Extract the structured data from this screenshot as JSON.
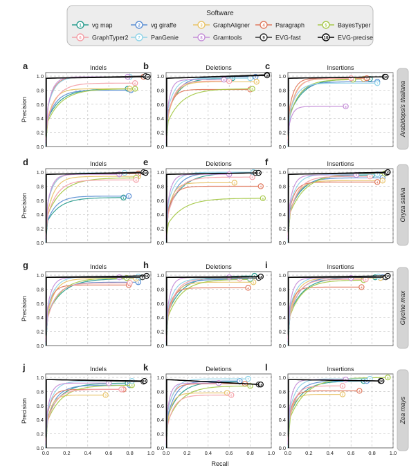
{
  "legend": {
    "title": "Software",
    "items": [
      {
        "num": "1",
        "name": "vg map",
        "color": "#2a9d8f"
      },
      {
        "num": "2",
        "name": "vg giraffe",
        "color": "#5b8fd4"
      },
      {
        "num": "3",
        "name": "GraphAligner",
        "color": "#e9c46a"
      },
      {
        "num": "4",
        "name": "Paragraph",
        "color": "#e07a5f"
      },
      {
        "num": "5",
        "name": "BayesTyper",
        "color": "#a7c94a"
      },
      {
        "num": "6",
        "name": "GraphTyper2",
        "color": "#f4a0a8"
      },
      {
        "num": "7",
        "name": "PanGenie",
        "color": "#8fd3e8"
      },
      {
        "num": "8",
        "name": "Gramtools",
        "color": "#c58fd8"
      },
      {
        "num": "9",
        "name": "EVG-fast",
        "color": "#333333"
      },
      {
        "num": "10",
        "name": "EVG-precise",
        "color": "#000000"
      }
    ]
  },
  "axes": {
    "xlabel": "Recall",
    "ylabel": "Precision",
    "xticks": [
      "0.0",
      "0.2",
      "0.4",
      "0.6",
      "0.8",
      "1.0"
    ],
    "yticks": [
      "0.0",
      "0.2",
      "0.4",
      "0.6",
      "0.8",
      "1.0"
    ],
    "xlim": [
      0,
      1
    ],
    "ylim": [
      0,
      1.05
    ]
  },
  "chart_data": {
    "type": "line",
    "columns": [
      "Indels",
      "Deletions",
      "Insertions"
    ],
    "rows": [
      "Arabidopsis thaliana",
      "Oryza sativa",
      "Glycine max",
      "Zea mays"
    ],
    "panel_letters": [
      "a",
      "b",
      "c",
      "d",
      "e",
      "f",
      "g",
      "h",
      "i",
      "j",
      "k",
      "l"
    ],
    "grid": true,
    "legend_placement": "top",
    "final_points": [
      [
        [
          [
            0.78,
            0.82
          ],
          [
            0.81,
            0.8
          ],
          [
            0.8,
            0.82
          ],
          [
            0.93,
            0.99
          ],
          [
            0.85,
            0.82
          ],
          [
            0.85,
            0.9
          ],
          [
            0.8,
            0.99
          ],
          [
            0.78,
            0.99
          ],
          [
            0.95,
            1.0
          ],
          [
            0.97,
            0.99
          ]
        ],
        [
          [
            0.63,
            0.97
          ],
          [
            0.85,
            0.99
          ],
          [
            0.86,
            0.92
          ],
          [
            0.8,
            0.81
          ],
          [
            0.82,
            0.82
          ],
          [
            0.6,
            0.93
          ],
          [
            0.8,
            0.97
          ],
          [
            0.55,
            0.95
          ],
          [
            0.96,
            1.02
          ],
          [
            0.96,
            1.01
          ]
        ],
        [
          [
            0.78,
            0.96
          ],
          [
            0.85,
            0.92
          ],
          [
            0.72,
            0.96
          ],
          [
            0.75,
            0.97
          ],
          [
            0.62,
            0.95
          ],
          [
            0.6,
            0.97
          ],
          [
            0.85,
            0.9
          ],
          [
            0.55,
            0.57
          ],
          [
            0.92,
            0.99
          ],
          [
            0.93,
            0.99
          ]
        ]
      ],
      [
        [
          [
            0.74,
            0.64
          ],
          [
            0.79,
            0.66
          ],
          [
            0.88,
            0.94
          ],
          [
            0.88,
            0.98
          ],
          [
            0.86,
            0.92
          ],
          [
            0.86,
            0.89
          ],
          [
            0.75,
            0.99
          ],
          [
            0.7,
            0.97
          ],
          [
            0.93,
            1.0
          ],
          [
            0.95,
            0.99
          ]
        ],
        [
          [
            0.86,
            0.99
          ],
          [
            0.83,
            0.99
          ],
          [
            0.65,
            0.85
          ],
          [
            0.9,
            0.8
          ],
          [
            0.92,
            0.63
          ],
          [
            0.82,
            0.93
          ],
          [
            0.83,
            1.0
          ],
          [
            0.6,
            0.97
          ],
          [
            0.85,
            0.99
          ],
          [
            0.88,
            0.99
          ]
        ],
        [
          [
            0.8,
            0.96
          ],
          [
            0.9,
            0.92
          ],
          [
            0.9,
            0.88
          ],
          [
            0.85,
            0.86
          ],
          [
            0.92,
            0.98
          ],
          [
            0.78,
            0.94
          ],
          [
            0.85,
            0.97
          ],
          [
            0.65,
            0.96
          ],
          [
            0.94,
            0.99
          ],
          [
            0.95,
            1.0
          ]
        ]
      ],
      [
        [
          [
            0.88,
            0.95
          ],
          [
            0.88,
            0.9
          ],
          [
            0.86,
            0.95
          ],
          [
            0.79,
            0.86
          ],
          [
            0.77,
            0.96
          ],
          [
            0.8,
            0.89
          ],
          [
            0.88,
            0.98
          ],
          [
            0.7,
            0.97
          ],
          [
            0.92,
            0.97
          ],
          [
            0.96,
            0.99
          ]
        ],
        [
          [
            0.84,
            0.99
          ],
          [
            0.8,
            0.94
          ],
          [
            0.83,
            0.9
          ],
          [
            0.78,
            0.82
          ],
          [
            0.8,
            0.94
          ],
          [
            0.7,
            0.95
          ],
          [
            0.8,
            0.95
          ],
          [
            0.6,
            0.97
          ],
          [
            0.88,
            0.96
          ],
          [
            0.9,
            0.98
          ]
        ],
        [
          [
            0.83,
            0.97
          ],
          [
            0.9,
            0.97
          ],
          [
            0.88,
            0.96
          ],
          [
            0.7,
            0.83
          ],
          [
            0.72,
            0.93
          ],
          [
            0.74,
            0.94
          ],
          [
            0.86,
            0.98
          ],
          [
            0.6,
            0.96
          ],
          [
            0.93,
            0.97
          ],
          [
            0.95,
            0.99
          ]
        ]
      ],
      [
        [
          [
            0.78,
            0.92
          ],
          [
            0.8,
            0.89
          ],
          [
            0.57,
            0.75
          ],
          [
            0.74,
            0.83
          ],
          [
            0.82,
            0.89
          ],
          [
            0.72,
            0.83
          ],
          [
            0.82,
            0.95
          ],
          [
            0.6,
            0.92
          ],
          [
            0.93,
            0.94
          ],
          [
            0.94,
            0.95
          ]
        ],
        [
          [
            0.7,
            0.94
          ],
          [
            0.7,
            0.95
          ],
          [
            0.58,
            0.78
          ],
          [
            0.75,
            0.91
          ],
          [
            0.8,
            0.88
          ],
          [
            0.62,
            0.75
          ],
          [
            0.78,
            0.98
          ],
          [
            0.5,
            0.92
          ],
          [
            0.88,
            0.9
          ],
          [
            0.9,
            0.9
          ]
        ],
        [
          [
            0.72,
            0.95
          ],
          [
            0.75,
            0.95
          ],
          [
            0.52,
            0.76
          ],
          [
            0.68,
            0.81
          ],
          [
            0.95,
            1.0
          ],
          [
            0.52,
            0.88
          ],
          [
            0.78,
            0.98
          ],
          [
            0.55,
            0.97
          ],
          [
            0.88,
            0.95
          ],
          [
            0.89,
            0.95
          ]
        ]
      ]
    ]
  }
}
